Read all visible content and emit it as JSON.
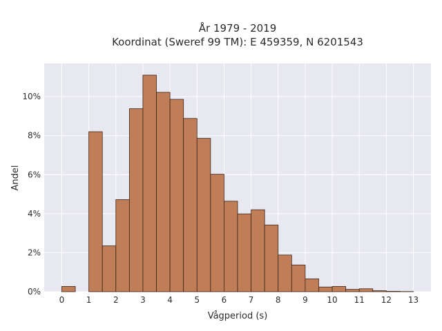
{
  "chart_data": {
    "type": "bar",
    "title_line1": "År 1979 - 2019",
    "title_line2": "Koordinat (Sweref 99 TM): E 459359, N 6201543",
    "xlabel": "Vågperiod (s)",
    "ylabel": "Andel",
    "bin_width": 0.5,
    "bins": [
      {
        "start": 0.0,
        "value": 0.27
      },
      {
        "start": 0.5,
        "value": 0.0
      },
      {
        "start": 1.0,
        "value": 8.2
      },
      {
        "start": 1.5,
        "value": 2.35
      },
      {
        "start": 2.0,
        "value": 4.72
      },
      {
        "start": 2.5,
        "value": 9.38
      },
      {
        "start": 3.0,
        "value": 11.1
      },
      {
        "start": 3.5,
        "value": 10.22
      },
      {
        "start": 4.0,
        "value": 9.86
      },
      {
        "start": 4.5,
        "value": 8.88
      },
      {
        "start": 5.0,
        "value": 7.86
      },
      {
        "start": 5.5,
        "value": 6.02
      },
      {
        "start": 6.0,
        "value": 4.64
      },
      {
        "start": 6.5,
        "value": 3.99
      },
      {
        "start": 7.0,
        "value": 4.2
      },
      {
        "start": 7.5,
        "value": 3.42
      },
      {
        "start": 8.0,
        "value": 1.88
      },
      {
        "start": 8.5,
        "value": 1.37
      },
      {
        "start": 9.0,
        "value": 0.66
      },
      {
        "start": 9.5,
        "value": 0.24
      },
      {
        "start": 10.0,
        "value": 0.27
      },
      {
        "start": 10.5,
        "value": 0.12
      },
      {
        "start": 11.0,
        "value": 0.15
      },
      {
        "start": 11.5,
        "value": 0.05
      },
      {
        "start": 12.0,
        "value": 0.02
      },
      {
        "start": 12.5,
        "value": 0.01
      }
    ],
    "xlim": [
      -0.65,
      13.65
    ],
    "ylim": [
      0,
      11.7
    ],
    "xticks": [
      0,
      1,
      2,
      3,
      4,
      5,
      6,
      7,
      8,
      9,
      10,
      11,
      12,
      13
    ],
    "yticks": [
      0,
      2,
      4,
      6,
      8,
      10
    ],
    "ytick_labels": [
      "0%",
      "2%",
      "4%",
      "6%",
      "8%",
      "10%"
    ],
    "grid": true,
    "colors": {
      "bar_fill": "#c07e58",
      "bar_edge": "#3b2418",
      "plot_bg": "#e8e8f0",
      "grid": "#ffffff"
    }
  }
}
